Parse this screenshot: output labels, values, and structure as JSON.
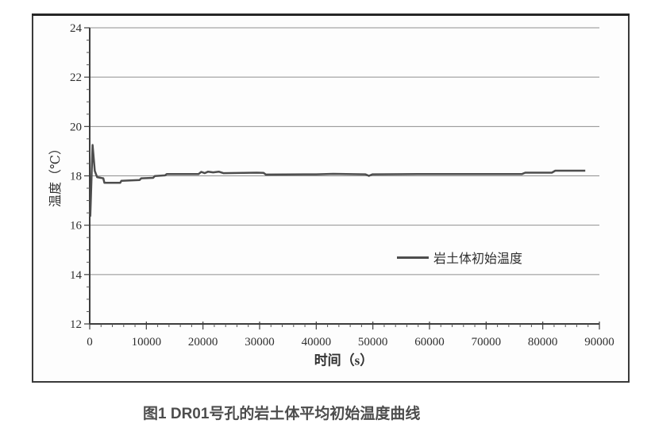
{
  "figure": {
    "caption": "图1 DR01号孔的岩土体平均初始温度曲线"
  },
  "chart_data": {
    "type": "line",
    "title": "",
    "xlabel": "时间（s）",
    "ylabel": "温度（℃）",
    "xlim": [
      0,
      90000
    ],
    "ylim": [
      12,
      24
    ],
    "x_ticks": [
      0,
      10000,
      20000,
      30000,
      40000,
      50000,
      60000,
      70000,
      80000,
      90000
    ],
    "x_minor_step": 2000,
    "y_ticks": [
      12,
      14,
      16,
      18,
      20,
      22,
      24
    ],
    "y_minor_step": 0.5,
    "grid": "horizontal major gridlines only",
    "legend_position": "inside right-center",
    "colors": {
      "line": "#4d4d4d",
      "grid": "#8f8f8f",
      "axis": "#3d3d3d",
      "text": "#2f2f2f",
      "frame_border": "#3a3a3a",
      "plot_background": "#fdfdfd",
      "caption": "#4d4d4d"
    },
    "series": [
      {
        "name": "岩土体初始温度",
        "points": [
          [
            100,
            16.35
          ],
          [
            500,
            19.25
          ],
          [
            900,
            18.2
          ],
          [
            1300,
            17.95
          ],
          [
            2400,
            17.9
          ],
          [
            2600,
            17.72
          ],
          [
            5400,
            17.72
          ],
          [
            5600,
            17.8
          ],
          [
            8800,
            17.83
          ],
          [
            9100,
            17.9
          ],
          [
            11200,
            17.92
          ],
          [
            11500,
            17.99
          ],
          [
            13300,
            18.02
          ],
          [
            13600,
            18.07
          ],
          [
            19200,
            18.07
          ],
          [
            19700,
            18.16
          ],
          [
            20300,
            18.11
          ],
          [
            20900,
            18.17
          ],
          [
            21800,
            18.14
          ],
          [
            22800,
            18.17
          ],
          [
            23600,
            18.11
          ],
          [
            29500,
            18.13
          ],
          [
            30700,
            18.12
          ],
          [
            31100,
            18.05
          ],
          [
            40000,
            18.06
          ],
          [
            43000,
            18.08
          ],
          [
            48700,
            18.06
          ],
          [
            49300,
            18.0
          ],
          [
            49900,
            18.06
          ],
          [
            58000,
            18.07
          ],
          [
            68000,
            18.07
          ],
          [
            76300,
            18.07
          ],
          [
            76900,
            18.13
          ],
          [
            81600,
            18.13
          ],
          [
            82200,
            18.21
          ],
          [
            87500,
            18.21
          ]
        ]
      }
    ]
  }
}
